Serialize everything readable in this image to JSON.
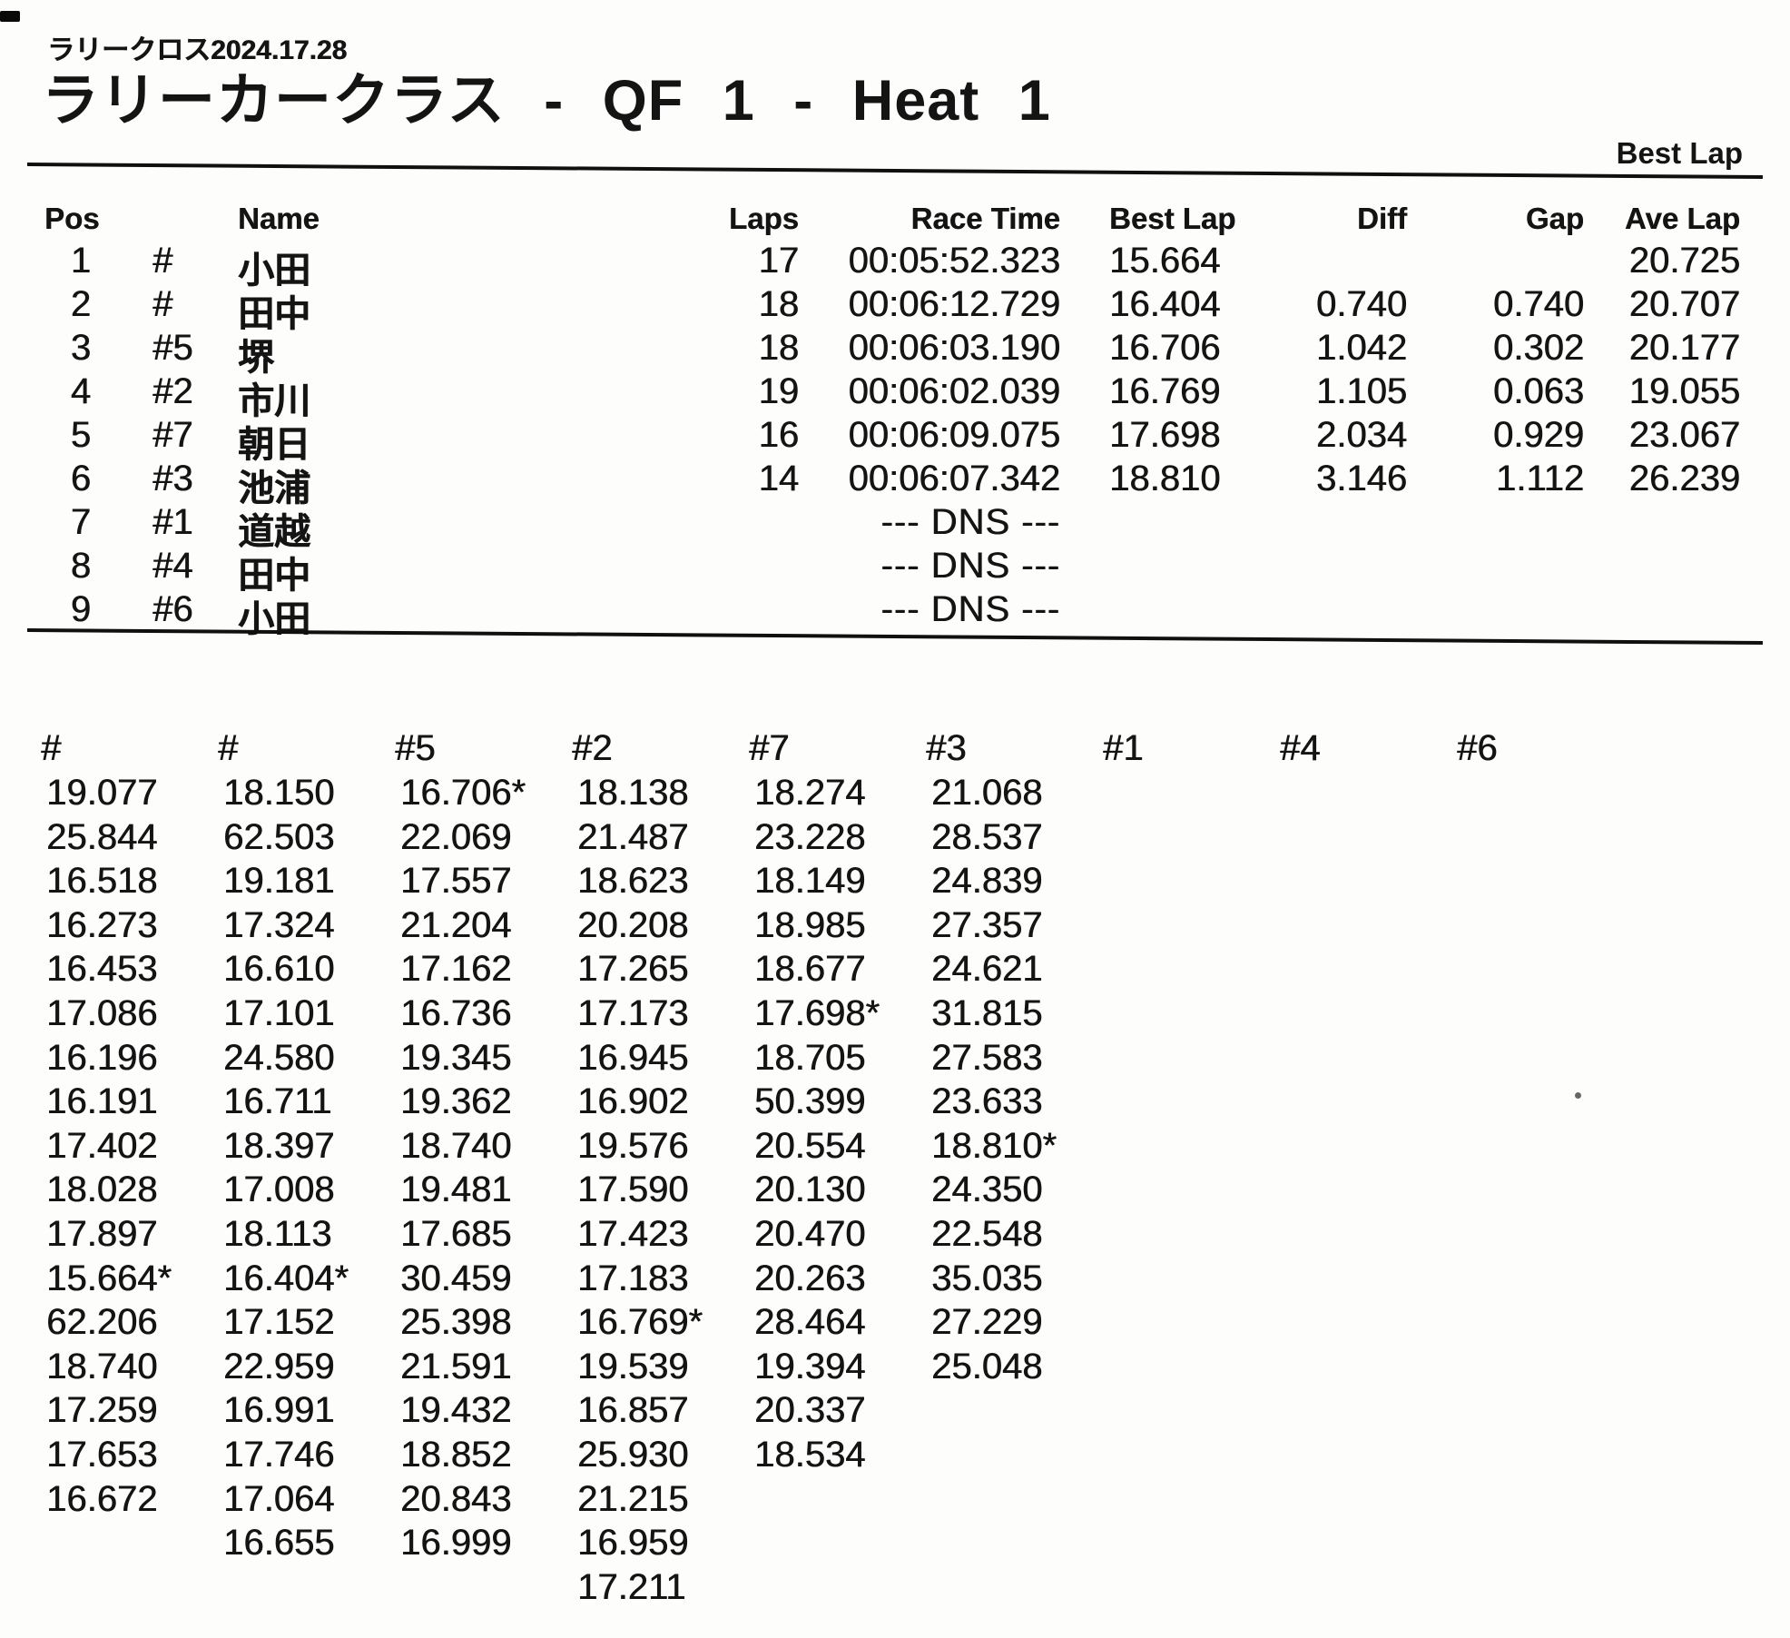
{
  "meta": {
    "event": "ラリークロス2024.17.28",
    "title": "ラリーカークラス - QF 1 - Heat 1",
    "corner_label": "Best Lap",
    "colors": {
      "ink": "#141414",
      "paper": "#fdfdfc"
    }
  },
  "results": {
    "headers": {
      "pos": "Pos",
      "name": "Name",
      "laps": "Laps",
      "race_time": "Race Time",
      "best_lap": "Best Lap",
      "diff": "Diff",
      "gap": "Gap",
      "ave_lap": "Ave Lap"
    },
    "rows": [
      {
        "pos": "1",
        "car": "#",
        "name": "小田",
        "laps": "17",
        "race_time": "00:05:52.323",
        "best_lap": "15.664",
        "diff": "",
        "gap": "",
        "ave_lap": "20.725"
      },
      {
        "pos": "2",
        "car": "#",
        "name": "田中",
        "laps": "18",
        "race_time": "00:06:12.729",
        "best_lap": "16.404",
        "diff": "0.740",
        "gap": "0.740",
        "ave_lap": "20.707"
      },
      {
        "pos": "3",
        "car": "#5",
        "name": "堺",
        "laps": "18",
        "race_time": "00:06:03.190",
        "best_lap": "16.706",
        "diff": "1.042",
        "gap": "0.302",
        "ave_lap": "20.177"
      },
      {
        "pos": "4",
        "car": "#2",
        "name": "市川",
        "laps": "19",
        "race_time": "00:06:02.039",
        "best_lap": "16.769",
        "diff": "1.105",
        "gap": "0.063",
        "ave_lap": "19.055"
      },
      {
        "pos": "5",
        "car": "#7",
        "name": "朝日",
        "laps": "16",
        "race_time": "00:06:09.075",
        "best_lap": "17.698",
        "diff": "2.034",
        "gap": "0.929",
        "ave_lap": "23.067"
      },
      {
        "pos": "6",
        "car": "#3",
        "name": "池浦",
        "laps": "14",
        "race_time": "00:06:07.342",
        "best_lap": "18.810",
        "diff": "3.146",
        "gap": "1.112",
        "ave_lap": "26.239"
      },
      {
        "pos": "7",
        "car": "#1",
        "name": "道越",
        "dns": "--- DNS ---"
      },
      {
        "pos": "8",
        "car": "#4",
        "name": "田中",
        "dns": "--- DNS ---"
      },
      {
        "pos": "9",
        "car": "#6",
        "name": "小田",
        "dns": "--- DNS ---"
      }
    ]
  },
  "lap_table": {
    "columns": [
      {
        "car": "#",
        "laps": [
          "19.077",
          "25.844",
          "16.518",
          "16.273",
          "16.453",
          "17.086",
          "16.196",
          "16.191",
          "17.402",
          "18.028",
          "17.897",
          "15.664*",
          "62.206",
          "18.740",
          "17.259",
          "17.653",
          "16.672"
        ]
      },
      {
        "car": "#",
        "laps": [
          "18.150",
          "62.503",
          "19.181",
          "17.324",
          "16.610",
          "17.101",
          "24.580",
          "16.711",
          "18.397",
          "17.008",
          "18.113",
          "16.404*",
          "17.152",
          "22.959",
          "16.991",
          "17.746",
          "17.064",
          "16.655"
        ]
      },
      {
        "car": "#5",
        "laps": [
          "16.706*",
          "22.069",
          "17.557",
          "21.204",
          "17.162",
          "16.736",
          "19.345",
          "19.362",
          "18.740",
          "19.481",
          "17.685",
          "30.459",
          "25.398",
          "21.591",
          "19.432",
          "18.852",
          "20.843",
          "16.999"
        ]
      },
      {
        "car": "#2",
        "laps": [
          "18.138",
          "21.487",
          "18.623",
          "20.208",
          "17.265",
          "17.173",
          "16.945",
          "16.902",
          "19.576",
          "17.590",
          "17.423",
          "17.183",
          "16.769*",
          "19.539",
          "16.857",
          "25.930",
          "21.215",
          "16.959",
          "17.211"
        ]
      },
      {
        "car": "#7",
        "laps": [
          "18.274",
          "23.228",
          "18.149",
          "18.985",
          "18.677",
          "17.698*",
          "18.705",
          "50.399",
          "20.554",
          "20.130",
          "20.470",
          "20.263",
          "28.464",
          "19.394",
          "20.337",
          "18.534"
        ]
      },
      {
        "car": "#3",
        "laps": [
          "21.068",
          "28.537",
          "24.839",
          "27.357",
          "24.621",
          "31.815",
          "27.583",
          "23.633",
          "18.810*",
          "24.350",
          "22.548",
          "35.035",
          "27.229",
          "25.048"
        ]
      },
      {
        "car": "#1",
        "laps": []
      },
      {
        "car": "#4",
        "laps": []
      },
      {
        "car": "#6",
        "laps": []
      }
    ]
  }
}
